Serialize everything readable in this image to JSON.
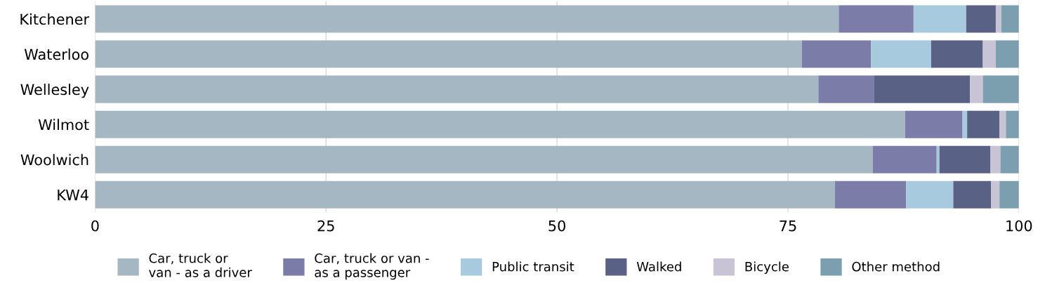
{
  "chart_data": {
    "type": "bar",
    "orientation": "horizontal",
    "stacked": true,
    "categories": [
      "Kitchener",
      "Waterloo",
      "Wellesley",
      "Wilmot",
      "Woolwich",
      "KW4"
    ],
    "series": [
      {
        "name": "Car, truck or\nvan - as a driver",
        "color": "#a4b7c2",
        "values": [
          80.5,
          76.5,
          78.3,
          87.7,
          84.2,
          80.1
        ]
      },
      {
        "name": "Car, truck or van -\nas a passenger",
        "color": "#7b7ca8",
        "values": [
          8.1,
          7.5,
          6.0,
          6.2,
          6.9,
          7.7
        ]
      },
      {
        "name": "Public transit",
        "color": "#a7cade",
        "values": [
          5.7,
          6.5,
          0,
          0.5,
          0.3,
          5.1
        ]
      },
      {
        "name": "Walked",
        "color": "#596184",
        "values": [
          3.2,
          5.6,
          10.4,
          3.5,
          5.5,
          4.1
        ]
      },
      {
        "name": "Bicycle",
        "color": "#c9c3d6",
        "values": [
          0.6,
          1.4,
          1.4,
          0.7,
          1.1,
          0.9
        ]
      },
      {
        "name": "Other method",
        "color": "#7b9faf",
        "values": [
          1.9,
          2.5,
          3.9,
          1.4,
          2.0,
          2.1
        ]
      }
    ],
    "xlim": [
      0,
      100
    ],
    "xticks": [
      0,
      25,
      50,
      75,
      100
    ],
    "grid": "x",
    "legend": "bottom"
  }
}
